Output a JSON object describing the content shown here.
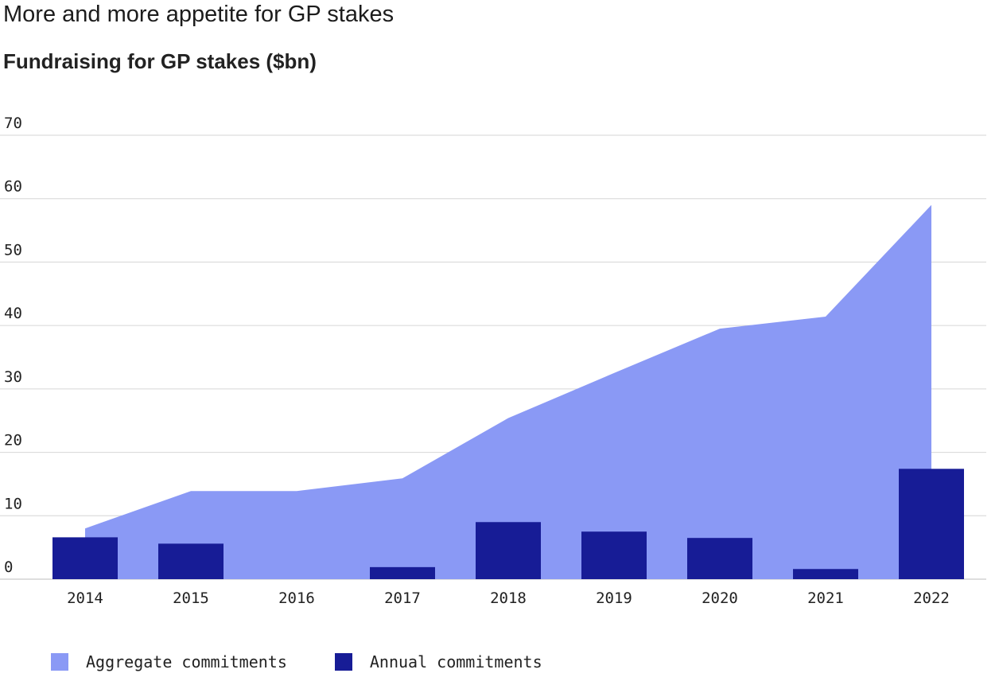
{
  "colors": {
    "aggregate": "#8a99f5",
    "annual": "#171c96",
    "grid": "#d6d6d6",
    "text": "#222222"
  },
  "chart_data": {
    "type": "bar",
    "title": "More and more appetite for GP stakes",
    "subtitle": "Fundraising for GP stakes ($bn)",
    "xlabel": "",
    "ylabel": "",
    "ylim": [
      0,
      70
    ],
    "yticks": [
      "0",
      "10",
      "20",
      "30",
      "40",
      "50",
      "60",
      "70"
    ],
    "grid": true,
    "legend_position": "bottom-left",
    "categories": [
      "2014",
      "2015",
      "2016",
      "2017",
      "2018",
      "2019",
      "2020",
      "2021",
      "2022"
    ],
    "series": [
      {
        "name": "Aggregate commitments",
        "kind": "area",
        "values": [
          8,
          13.9,
          13.9,
          15.9,
          25.4,
          32.5,
          39.5,
          41.4,
          59
        ]
      },
      {
        "name": "Annual commitments",
        "kind": "bar",
        "values": [
          6.6,
          5.6,
          0,
          1.9,
          9,
          7.5,
          6.5,
          1.6,
          17.4
        ]
      }
    ]
  }
}
